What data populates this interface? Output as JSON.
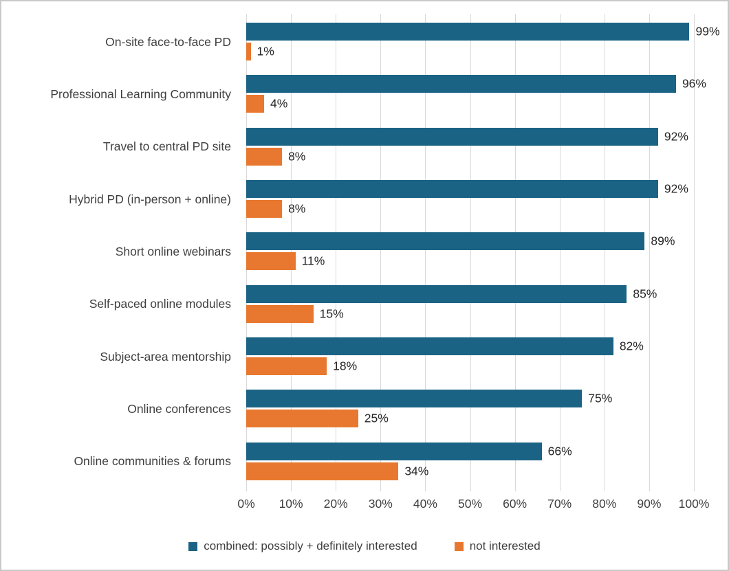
{
  "chart_data": {
    "type": "bar",
    "orientation": "horizontal",
    "title": "",
    "xlabel": "",
    "ylabel": "",
    "xlim": [
      0,
      100
    ],
    "grid": "vertical",
    "legend_position": "bottom",
    "data_label_suffix": "%",
    "categories": [
      "On-site face-to-face PD",
      "Professional Learning Community",
      "Travel to central PD site",
      "Hybrid PD (in-person + online)",
      "Short online webinars",
      "Self-paced online modules",
      "Subject-area mentorship",
      "Online conferences",
      "Online communities & forums"
    ],
    "series": [
      {
        "name": "combined: possibly + definitely interested",
        "color": "#1B6385",
        "values": [
          99,
          96,
          92,
          92,
          89,
          85,
          82,
          75,
          66
        ],
        "labels": [
          "99%",
          "96%",
          "92%",
          "92%",
          "89%",
          "85%",
          "82%",
          "75%",
          "66%"
        ]
      },
      {
        "name": "not interested",
        "color": "#E8782F",
        "values": [
          1,
          4,
          8,
          8,
          11,
          15,
          18,
          25,
          34
        ],
        "labels": [
          "1%",
          "4%",
          "8%",
          "8%",
          "11%",
          "15%",
          "18%",
          "25%",
          "34%"
        ]
      }
    ],
    "x_ticks": [
      "0%",
      "10%",
      "20%",
      "30%",
      "40%",
      "50%",
      "60%",
      "70%",
      "80%",
      "90%",
      "100%"
    ]
  },
  "colors": {
    "series_interested": "#1B6385",
    "series_not_interested": "#E8782F",
    "gridline": "#D9D9D9",
    "category_text": "#3F3F3F",
    "data_label_text": "#262626",
    "frame_border": "#C9C9C9",
    "background": "#FFFFFF"
  }
}
